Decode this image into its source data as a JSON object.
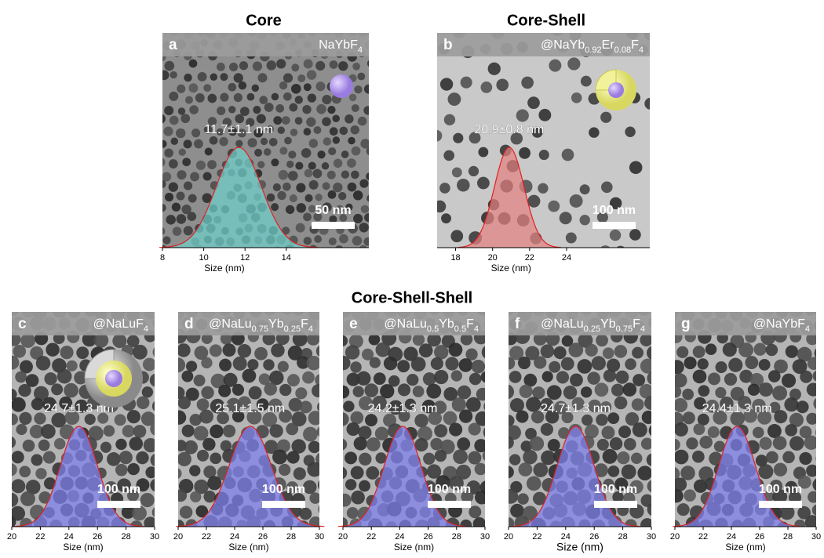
{
  "titles": {
    "core": "Core",
    "core_shell": "Core-Shell",
    "core_shell_shell": "Core-Shell-Shell"
  },
  "panels": [
    {
      "letter": "a",
      "label": [
        "NaYbF",
        "4"
      ],
      "size_label": "11.7±1.1 nm",
      "mean": 11.7,
      "sd": 1.1,
      "scale_bar": "50 nm",
      "xlim": [
        8,
        18
      ],
      "xticks": [
        8,
        10,
        12,
        14
      ],
      "xlabel": "Size (nm)"
    },
    {
      "letter": "b",
      "label": [
        "@NaYb",
        "0.92",
        "Er",
        "0.08",
        "F",
        "4"
      ],
      "size_label": "20.9±0.8 nm",
      "mean": 20.9,
      "sd": 0.8,
      "scale_bar": "100 nm",
      "xlim": [
        17,
        28.5
      ],
      "xticks": [
        18,
        20,
        22,
        24
      ],
      "xlabel": "Size (nm)"
    },
    {
      "letter": "c",
      "label": [
        "@NaLuF",
        "4"
      ],
      "size_label": "24.7±1.3 nm",
      "mean": 24.7,
      "sd": 1.3,
      "scale_bar": "100 nm",
      "xlim": [
        20,
        30
      ],
      "xticks": [
        20,
        22,
        24,
        26,
        28,
        30
      ],
      "xlabel": "Size (nm)"
    },
    {
      "letter": "d",
      "label": [
        "@NaLu",
        "0.75",
        "Yb",
        "0.25",
        "F",
        "4"
      ],
      "size_label": "25.1±1.5 nm",
      "mean": 25.1,
      "sd": 1.5,
      "scale_bar": "100 nm",
      "xlim": [
        20,
        30
      ],
      "xticks": [
        20,
        22,
        24,
        26,
        28,
        30
      ],
      "xlabel": "Size (nm)"
    },
    {
      "letter": "e",
      "label": [
        "@NaLu",
        "0.5",
        "Yb",
        "0.5",
        "F",
        "4"
      ],
      "size_label": "24.2±1.3 nm",
      "mean": 24.2,
      "sd": 1.3,
      "scale_bar": "100 nm",
      "xlim": [
        20,
        30
      ],
      "xticks": [
        20,
        22,
        24,
        26,
        28,
        30
      ],
      "xlabel": "Size (nm)"
    },
    {
      "letter": "f",
      "label": [
        "@NaLu",
        "0.25",
        "Yb",
        "0.75",
        "F",
        "4"
      ],
      "size_label": "24.7±1.3 nm",
      "mean": 24.7,
      "sd": 1.3,
      "scale_bar": "100 nm",
      "xlim": [
        20,
        30
      ],
      "xticks": [
        20,
        22,
        24,
        26,
        28,
        30
      ],
      "xlabel": "Size (nm)"
    },
    {
      "letter": "g",
      "label": [
        "@NaYbF",
        "4"
      ],
      "size_label": "24.4±1.3 nm",
      "mean": 24.4,
      "sd": 1.3,
      "scale_bar": "100 nm",
      "xlim": [
        20,
        30
      ],
      "xticks": [
        20,
        22,
        24,
        26,
        28,
        30
      ],
      "xlabel": "Size (nm)"
    }
  ]
}
